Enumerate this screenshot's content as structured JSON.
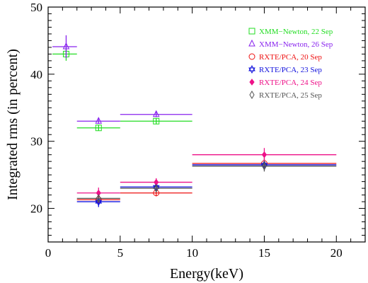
{
  "chart_data": {
    "type": "scatter",
    "title": "",
    "xlabel": "Energy(keV)",
    "ylabel": "Integrated rms (in percent)",
    "xlim": [
      0,
      22
    ],
    "ylim": [
      15,
      50
    ],
    "xticks": [
      "0",
      "5",
      "10",
      "15",
      "20"
    ],
    "yticks": [
      "20",
      "30",
      "40",
      "50"
    ],
    "grid": false,
    "legend_position": "top-right",
    "series": [
      {
        "name": "XMM−Newton, 22 Sep",
        "color": "#22dd22",
        "marker": "square",
        "points": [
          {
            "x": 1.25,
            "xerr": [
              0.3,
              2.0
            ],
            "y": 43.0,
            "yerr": 1.0
          },
          {
            "x": 3.5,
            "xerr": [
              2.0,
              5.0
            ],
            "y": 32.0,
            "yerr": 0.4
          },
          {
            "x": 7.5,
            "xerr": [
              5.0,
              10.0
            ],
            "y": 33.0,
            "yerr": 0.4
          }
        ]
      },
      {
        "name": "XMM−Newton, 26 Sep",
        "color": "#8822ee",
        "marker": "triangle",
        "points": [
          {
            "x": 1.25,
            "xerr": [
              0.3,
              2.0
            ],
            "y": 44.1,
            "yerr": 1.7
          },
          {
            "x": 3.5,
            "xerr": [
              2.0,
              5.0
            ],
            "y": 33.0,
            "yerr": 0.4
          },
          {
            "x": 7.5,
            "xerr": [
              5.0,
              10.0
            ],
            "y": 34.0,
            "yerr": 0.4
          }
        ]
      },
      {
        "name": "RXTE/PCA, 20 Sep",
        "color": "#ee1111",
        "marker": "circle",
        "points": [
          {
            "x": 3.5,
            "xerr": [
              2.0,
              5.0
            ],
            "y": 21.3,
            "yerr": 0.5
          },
          {
            "x": 7.5,
            "xerr": [
              5.0,
              10.0
            ],
            "y": 22.3,
            "yerr": 0.5
          },
          {
            "x": 15,
            "xerr": [
              10.0,
              20.0
            ],
            "y": 26.7,
            "yerr": 0.8
          }
        ]
      },
      {
        "name": "RXTE/PCA, 23 Sep",
        "color": "#1111dd",
        "marker": "star",
        "points": [
          {
            "x": 3.5,
            "xerr": [
              2.0,
              5.0
            ],
            "y": 21.0,
            "yerr": 0.8
          },
          {
            "x": 7.5,
            "xerr": [
              5.0,
              10.0
            ],
            "y": 23.2,
            "yerr": 0.5
          },
          {
            "x": 15,
            "xerr": [
              10.0,
              20.0
            ],
            "y": 26.5,
            "yerr": 0.8
          }
        ]
      },
      {
        "name": "RXTE/PCA, 24 Sep",
        "color": "#ee1188",
        "marker": "diamond-filled",
        "points": [
          {
            "x": 3.5,
            "xerr": [
              2.0,
              5.0
            ],
            "y": 22.3,
            "yerr": 0.8
          },
          {
            "x": 7.5,
            "xerr": [
              5.0,
              10.0
            ],
            "y": 23.9,
            "yerr": 0.6
          },
          {
            "x": 15,
            "xerr": [
              10.0,
              20.0
            ],
            "y": 28.0,
            "yerr": 1.0
          }
        ]
      },
      {
        "name": "RXTE/PCA, 25 Sep",
        "color": "#555555",
        "marker": "diamond",
        "points": [
          {
            "x": 3.5,
            "xerr": [
              2.0,
              5.0
            ],
            "y": 21.5,
            "yerr": 0.6
          },
          {
            "x": 7.5,
            "xerr": [
              5.0,
              10.0
            ],
            "y": 23.0,
            "yerr": 0.5
          },
          {
            "x": 15,
            "xerr": [
              10.0,
              20.0
            ],
            "y": 26.3,
            "yerr": 0.8
          }
        ]
      }
    ]
  }
}
